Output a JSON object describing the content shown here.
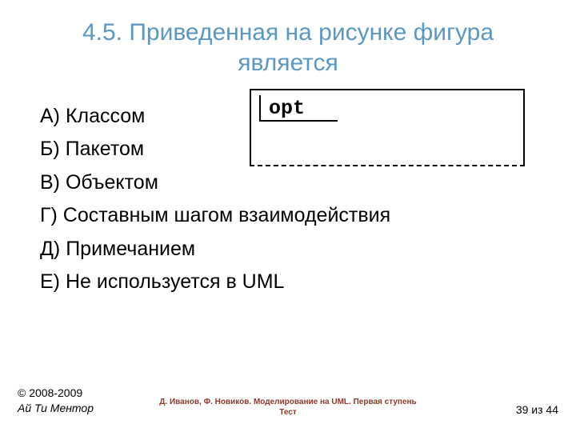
{
  "title": "4.5. Приведенная на рисунке фигура является",
  "figure": {
    "label": "opt"
  },
  "answers": [
    "А) Классом",
    "Б) Пакетом",
    "В) Объектом",
    "Г) Составным шагом взаимодействия",
    "Д) Примечанием",
    "Е) Не используется в UML"
  ],
  "footer": {
    "copyright": "© 2008-2009",
    "company": "Ай Ти Ментор",
    "center_line1": "Д. Иванов, Ф. Новиков. Моделирование на UML. Первая ступень",
    "center_line2": "Тест",
    "page_prefix": "",
    "page_current": "39",
    "page_sep": " из ",
    "page_total": "44"
  },
  "colors": {
    "title": "#5c97c0",
    "text": "#000000",
    "footer_center": "#8a3a2a",
    "background": "#ffffff"
  }
}
